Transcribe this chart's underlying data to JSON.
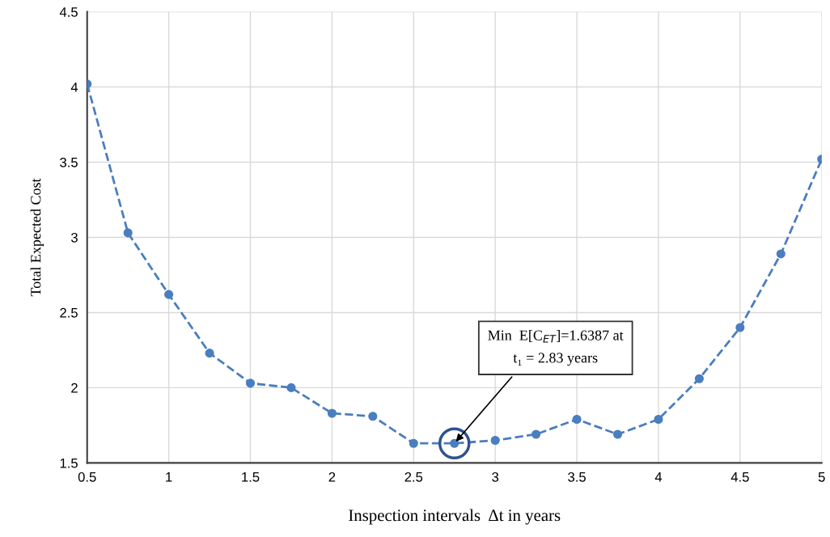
{
  "chart_data": {
    "type": "line",
    "xlabel": "Inspection intervals  Δt in years",
    "ylabel": "Total Expected Cost",
    "x": [
      0.5,
      0.75,
      1,
      1.25,
      1.5,
      1.75,
      2,
      2.25,
      2.5,
      2.75,
      3,
      3.25,
      3.5,
      3.75,
      4,
      4.25,
      4.5,
      4.75,
      5
    ],
    "series": [
      {
        "color": "#4a7ebf",
        "values": [
          4.02,
          3.03,
          2.62,
          2.23,
          2.03,
          2.0,
          1.83,
          1.81,
          1.63,
          1.63,
          1.65,
          1.69,
          1.79,
          1.69,
          1.79,
          2.06,
          2.4,
          2.89,
          3.52
        ]
      }
    ],
    "xlim": [
      0.5,
      5
    ],
    "xticks": [
      0.5,
      1,
      1.5,
      2,
      2.5,
      3,
      3.5,
      4,
      4.5,
      5
    ],
    "ylim": [
      1.5,
      4.5
    ],
    "yticks": [
      1.5,
      2,
      2.5,
      3,
      3.5,
      4,
      4.5
    ],
    "grid": true,
    "marker": "circle",
    "line_style": "dashed",
    "legend": false,
    "annotations": [
      {
        "text": "Min  E[C$_{ET}$]=1.6387 at\nt₁ = 2.83 years",
        "x": 2.75,
        "y": 1.63
      }
    ]
  }
}
